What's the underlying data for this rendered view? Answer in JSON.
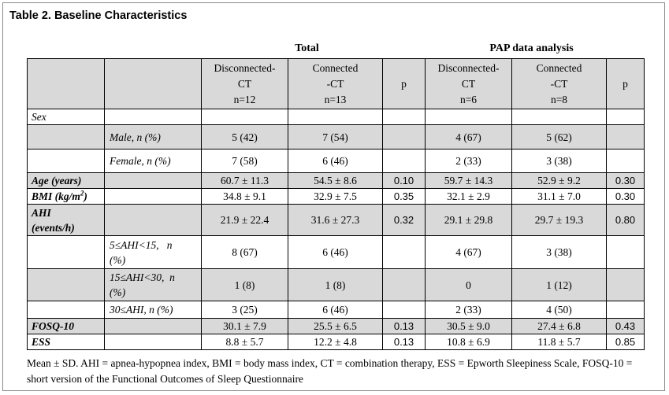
{
  "title": "Table 2. Baseline Characteristics",
  "group_headers": {
    "total": "Total",
    "pap": "PAP data analysis"
  },
  "columns": {
    "disconnected_ct": {
      "line1": "Disconnected-",
      "line2": "CT",
      "line3": "n=12"
    },
    "connected_ct": {
      "line1": "Connected",
      "line2": "-CT",
      "line3": "n=13"
    },
    "p": "p",
    "pap_disconnected_ct": {
      "line1": "Disconnected-",
      "line2": "CT",
      "line3": "n=6"
    },
    "pap_connected_ct": {
      "line1": "Connected",
      "line2": "-CT",
      "line3": "n=8"
    },
    "pap_p": "p"
  },
  "rows": {
    "sex": {
      "label": "Sex"
    },
    "male": {
      "label": "Male, n (%)",
      "dc": "5 (42)",
      "cc": "7 (54)",
      "p": "",
      "pdc": "4 (67)",
      "pcc": "5 (62)",
      "pp": ""
    },
    "female": {
      "label": "Female, n (%)",
      "dc": "7 (58)",
      "cc": "6 (46)",
      "p": "",
      "pdc": "2 (33)",
      "pcc": "3 (38)",
      "pp": ""
    },
    "age": {
      "label": "Age (years)",
      "dc": "60.7 ± 11.3",
      "cc": "54.5 ± 8.6",
      "p": "0.10",
      "pdc": "59.7 ± 14.3",
      "pcc": "52.9 ± 9.2",
      "pp": "0.30"
    },
    "bmi": {
      "label_main": "BMI (kg/m",
      "label_sup": "2",
      "label_end": ")",
      "dc": "34.8 ± 9.1",
      "cc": "32.9 ± 7.5",
      "p": "0.35",
      "pdc": "32.1 ± 2.9",
      "pcc": "31.1 ± 7.0",
      "pp": "0.30"
    },
    "ahi": {
      "label_line1": "AHI",
      "label_line2": "(events/h)",
      "dc": "21.9 ± 22.4",
      "cc": "31.6 ± 27.3",
      "p": "0.32",
      "pdc": "29.1 ± 29.8",
      "pcc": "29.7 ± 19.3",
      "pp": "0.80"
    },
    "ahi_5_15": {
      "label_line1": "5≤AHI<15,   n",
      "label_line2": "(%)",
      "dc": "8 (67)",
      "cc": "6 (46)",
      "p": "",
      "pdc": "4 (67)",
      "pcc": "3 (38)",
      "pp": ""
    },
    "ahi_15_30": {
      "label_line1": "15≤AHI<30,  n",
      "label_line2": "(%)",
      "dc": "1 (8)",
      "cc": "1 (8)",
      "p": "",
      "pdc": "0",
      "pcc": "1 (12)",
      "pp": ""
    },
    "ahi_30": {
      "label": "30≤AHI, n (%)",
      "dc": "3 (25)",
      "cc": "6 (46)",
      "p": "",
      "pdc": "2 (33)",
      "pcc": "4 (50)",
      "pp": ""
    },
    "fosq": {
      "label": "FOSQ-10",
      "dc": "30.1 ± 7.9",
      "cc": "25.5 ± 6.5",
      "p": "0.13",
      "pdc": "30.5 ± 9.0",
      "pcc": "27.4 ± 6.8",
      "pp": "0.43"
    },
    "ess": {
      "label": "ESS",
      "dc": "8.8 ± 5.7",
      "cc": "12.2 ± 4.8",
      "p": "0.13",
      "pdc": "10.8 ± 6.9",
      "pcc": "11.8 ± 5.7",
      "pp": "0.85"
    }
  },
  "footnote": "Mean ± SD. AHI = apnea-hypopnea index, BMI = body mass index, CT = combination therapy, ESS = Epworth Sleepiness Scale, FOSQ-10 = short version of the Functional Outcomes of Sleep Questionnaire"
}
